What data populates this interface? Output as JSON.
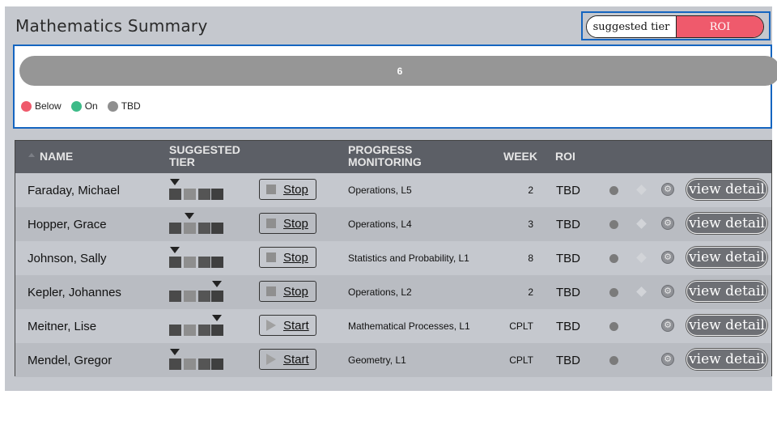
{
  "page": {
    "title": "Mathematics Summary"
  },
  "toggle": {
    "option1": "suggested tier",
    "option2": "ROI"
  },
  "summary": {
    "bar_label": "6",
    "legend": [
      {
        "label": "Below",
        "color": "#ef5a6c"
      },
      {
        "label": "On",
        "color": "#3dbb88"
      },
      {
        "label": "TBD",
        "color": "#8f8f8f"
      }
    ]
  },
  "table": {
    "headers": {
      "name": "NAME",
      "tier_line1": "SUGGESTED",
      "tier_line2": "TIER",
      "pm_line1": "PROGRESS",
      "pm_line2": "MONITORING",
      "week": "WEEK",
      "roi": "ROI"
    },
    "rows": [
      {
        "name": "Faraday, Michael",
        "tier": 1,
        "button": "Stop",
        "monitoring": "Operations, L5",
        "week": "2",
        "roi": "TBD",
        "detail": "view detail"
      },
      {
        "name": "Hopper, Grace",
        "tier": 2,
        "button": "Stop",
        "monitoring": "Operations, L4",
        "week": "3",
        "roi": "TBD",
        "detail": "view detail"
      },
      {
        "name": "Johnson, Sally",
        "tier": 1,
        "button": "Stop",
        "monitoring": "Statistics and Probability, L1",
        "week": "8",
        "roi": "TBD",
        "detail": "view detail"
      },
      {
        "name": "Kepler, Johannes",
        "tier": 4,
        "button": "Stop",
        "monitoring": "Operations, L2",
        "week": "2",
        "roi": "TBD",
        "detail": "view detail"
      },
      {
        "name": "Meitner, Lise",
        "tier": 4,
        "button": "Start",
        "monitoring": "Mathematical Processes, L1",
        "week": "CPLT",
        "roi": "TBD",
        "detail": "view detail"
      },
      {
        "name": "Mendel, Gregor",
        "tier": 1,
        "button": "Start",
        "monitoring": "Geometry, L1",
        "week": "CPLT",
        "roi": "TBD",
        "detail": "view detail"
      }
    ]
  }
}
